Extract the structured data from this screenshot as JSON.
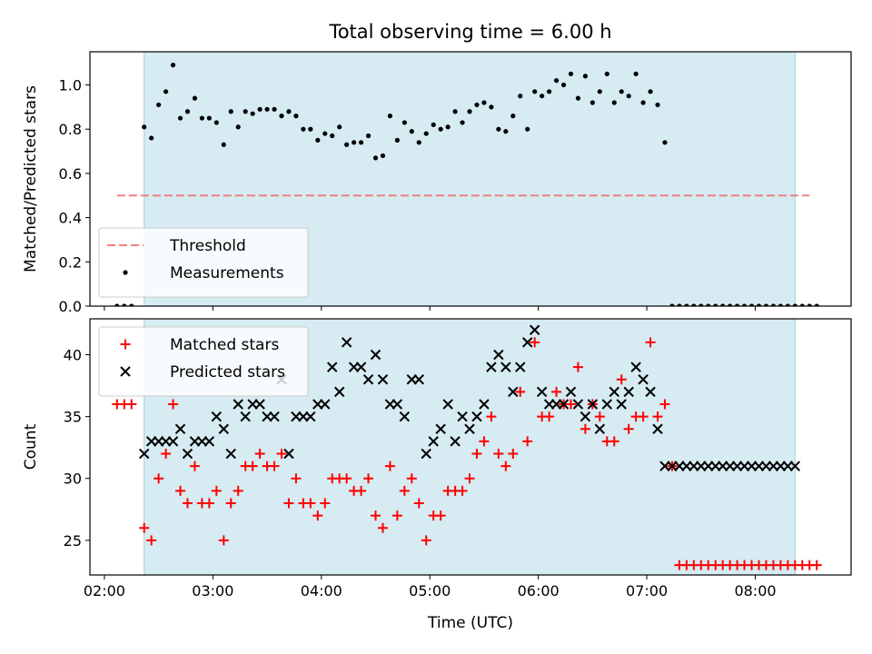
{
  "figure": {
    "title": "Total observing time = 6.00 h"
  },
  "chart_data": [
    {
      "type": "scatter",
      "title": "Total observing time = 6.00 h",
      "xlabel": "",
      "ylabel": "Matched/Predicted stars",
      "xlim": [
        "01:52",
        "08:53"
      ],
      "ylim": [
        0,
        1.15
      ],
      "x_ticks": [
        "02:00",
        "03:00",
        "04:00",
        "05:00",
        "06:00",
        "07:00",
        "08:00"
      ],
      "y_ticks": [
        "0.0",
        "0.2",
        "0.4",
        "0.6",
        "0.8",
        "1.0"
      ],
      "grid": false,
      "legend": "lower left",
      "shaded_interval": [
        "02:22",
        "08:22"
      ],
      "threshold": {
        "name": "Threshold",
        "y": 0.5,
        "x_range": [
          "02:07",
          "08:30"
        ],
        "color": "#f08080"
      },
      "series": [
        {
          "name": "Measurements",
          "color": "#000000",
          "x": [
            "02:07",
            "02:11",
            "02:15",
            "02:22",
            "02:26",
            "02:30",
            "02:34",
            "02:38",
            "02:42",
            "02:46",
            "02:50",
            "02:54",
            "02:58",
            "03:02",
            "03:06",
            "03:10",
            "03:14",
            "03:18",
            "03:22",
            "03:26",
            "03:30",
            "03:34",
            "03:38",
            "03:42",
            "03:46",
            "03:50",
            "03:54",
            "03:58",
            "04:02",
            "04:06",
            "04:10",
            "04:14",
            "04:18",
            "04:22",
            "04:26",
            "04:30",
            "04:34",
            "04:38",
            "04:42",
            "04:46",
            "04:50",
            "04:54",
            "04:58",
            "05:02",
            "05:06",
            "05:10",
            "05:14",
            "05:18",
            "05:22",
            "05:26",
            "05:30",
            "05:34",
            "05:38",
            "05:42",
            "05:46",
            "05:50",
            "05:54",
            "05:58",
            "06:02",
            "06:06",
            "06:10",
            "06:14",
            "06:18",
            "06:22",
            "06:26",
            "06:30",
            "06:34",
            "06:38",
            "06:42",
            "06:46",
            "06:50",
            "06:54",
            "06:58",
            "07:02",
            "07:06",
            "07:10",
            "07:14",
            "07:18",
            "07:22",
            "07:26",
            "07:30",
            "07:34",
            "07:38",
            "07:42",
            "07:46",
            "07:50",
            "07:54",
            "07:58",
            "08:02",
            "08:06",
            "08:10",
            "08:14",
            "08:18",
            "08:22",
            "08:26",
            "08:30",
            "08:34"
          ],
          "values": [
            0.0,
            0.0,
            0.0,
            0.81,
            0.76,
            0.91,
            0.97,
            1.09,
            0.85,
            0.88,
            0.94,
            0.85,
            0.85,
            0.83,
            0.73,
            0.88,
            0.81,
            0.88,
            0.87,
            0.89,
            0.89,
            0.89,
            0.86,
            0.88,
            0.86,
            0.8,
            0.8,
            0.75,
            0.78,
            0.77,
            0.81,
            0.73,
            0.74,
            0.74,
            0.77,
            0.67,
            0.68,
            0.86,
            0.75,
            0.83,
            0.79,
            0.74,
            0.78,
            0.82,
            0.8,
            0.81,
            0.88,
            0.83,
            0.88,
            0.91,
            0.92,
            0.9,
            0.8,
            0.79,
            0.86,
            0.95,
            0.8,
            0.97,
            0.95,
            0.97,
            1.02,
            1.0,
            1.05,
            0.94,
            1.04,
            0.92,
            0.97,
            1.05,
            0.92,
            0.97,
            0.95,
            1.05,
            0.92,
            0.97,
            0.91,
            0.74,
            0.0,
            0.0,
            0.0,
            0.0,
            0.0,
            0.0,
            0.0,
            0.0,
            0.0,
            0.0,
            0.0,
            0.0,
            0.0,
            0.0,
            0.0,
            0.0,
            0.0,
            0.0,
            0.0,
            0.0,
            0.0
          ]
        }
      ]
    },
    {
      "type": "scatter",
      "title": "",
      "xlabel": "Time (UTC)",
      "ylabel": "Count",
      "xlim": [
        "01:52",
        "08:53"
      ],
      "ylim": [
        22.2,
        42.9
      ],
      "x_ticks": [
        "02:00",
        "03:00",
        "04:00",
        "05:00",
        "06:00",
        "07:00",
        "08:00"
      ],
      "y_ticks": [
        "25",
        "30",
        "35",
        "40"
      ],
      "grid": false,
      "legend": "upper left",
      "shaded_interval": [
        "02:22",
        "08:22"
      ],
      "series": [
        {
          "name": "Matched stars",
          "color": "#ff0000",
          "marker": "+",
          "x": [
            "02:07",
            "02:11",
            "02:15",
            "02:22",
            "02:26",
            "02:30",
            "02:34",
            "02:38",
            "02:42",
            "02:46",
            "02:50",
            "02:54",
            "02:58",
            "03:02",
            "03:06",
            "03:10",
            "03:14",
            "03:18",
            "03:22",
            "03:26",
            "03:30",
            "03:34",
            "03:38",
            "03:42",
            "03:46",
            "03:50",
            "03:54",
            "03:58",
            "04:02",
            "04:06",
            "04:10",
            "04:14",
            "04:18",
            "04:22",
            "04:26",
            "04:30",
            "04:34",
            "04:38",
            "04:42",
            "04:46",
            "04:50",
            "04:54",
            "04:58",
            "05:02",
            "05:06",
            "05:10",
            "05:14",
            "05:18",
            "05:22",
            "05:26",
            "05:30",
            "05:34",
            "05:38",
            "05:42",
            "05:46",
            "05:50",
            "05:54",
            "05:58",
            "06:02",
            "06:06",
            "06:10",
            "06:14",
            "06:18",
            "06:22",
            "06:26",
            "06:30",
            "06:34",
            "06:38",
            "06:42",
            "06:46",
            "06:50",
            "06:54",
            "06:58",
            "07:02",
            "07:06",
            "07:10",
            "07:14",
            "07:18",
            "07:22",
            "07:26",
            "07:30",
            "07:34",
            "07:38",
            "07:42",
            "07:46",
            "07:50",
            "07:54",
            "07:58",
            "08:02",
            "08:06",
            "08:10",
            "08:14",
            "08:18",
            "08:22",
            "08:26",
            "08:30",
            "08:34"
          ],
          "values": [
            36,
            36,
            36,
            26,
            25,
            30,
            32,
            36,
            29,
            28,
            31,
            28,
            28,
            29,
            25,
            28,
            29,
            31,
            31,
            32,
            31,
            31,
            32,
            28,
            30,
            28,
            28,
            27,
            28,
            30,
            30,
            30,
            29,
            29,
            30,
            27,
            26,
            31,
            27,
            29,
            30,
            28,
            25,
            27,
            27,
            29,
            29,
            29,
            30,
            32,
            33,
            35,
            32,
            31,
            32,
            37,
            33,
            41,
            35,
            35,
            37,
            36,
            36,
            39,
            34,
            36,
            35,
            33,
            33,
            38,
            34,
            35,
            35,
            41,
            35,
            36,
            31,
            23,
            23,
            23,
            23,
            23,
            23,
            23,
            23,
            23,
            23,
            23,
            23,
            23,
            23,
            23,
            23,
            23,
            23,
            23,
            23
          ]
        },
        {
          "name": "Predicted stars",
          "color": "#000000",
          "marker": "x",
          "x": [
            "02:22",
            "02:26",
            "02:30",
            "02:34",
            "02:38",
            "02:42",
            "02:46",
            "02:50",
            "02:54",
            "02:58",
            "03:02",
            "03:06",
            "03:10",
            "03:14",
            "03:18",
            "03:22",
            "03:26",
            "03:30",
            "03:34",
            "03:38",
            "03:42",
            "03:46",
            "03:50",
            "03:54",
            "03:58",
            "04:02",
            "04:06",
            "04:10",
            "04:14",
            "04:18",
            "04:22",
            "04:26",
            "04:30",
            "04:34",
            "04:38",
            "04:42",
            "04:46",
            "04:50",
            "04:54",
            "04:58",
            "05:02",
            "05:06",
            "05:10",
            "05:14",
            "05:18",
            "05:22",
            "05:26",
            "05:30",
            "05:34",
            "05:38",
            "05:42",
            "05:46",
            "05:50",
            "05:54",
            "05:58",
            "06:02",
            "06:06",
            "06:10",
            "06:14",
            "06:18",
            "06:22",
            "06:26",
            "06:30",
            "06:34",
            "06:38",
            "06:42",
            "06:46",
            "06:50",
            "06:54",
            "06:58",
            "07:02",
            "07:06",
            "07:10",
            "07:14",
            "07:18",
            "07:22",
            "07:26",
            "07:30",
            "07:34",
            "07:38",
            "07:42",
            "07:46",
            "07:50",
            "07:54",
            "07:58",
            "08:02",
            "08:06",
            "08:10",
            "08:14",
            "08:18",
            "08:22"
          ],
          "values": [
            32,
            33,
            33,
            33,
            33,
            34,
            32,
            33,
            33,
            33,
            35,
            34,
            32,
            36,
            35,
            36,
            36,
            35,
            35,
            38,
            32,
            35,
            35,
            35,
            36,
            36,
            39,
            37,
            41,
            39,
            39,
            38,
            40,
            38,
            36,
            36,
            35,
            38,
            38,
            32,
            33,
            34,
            36,
            33,
            35,
            34,
            35,
            36,
            39,
            40,
            39,
            37,
            39,
            41,
            42,
            37,
            36,
            36,
            36,
            37,
            36,
            35,
            36,
            34,
            36,
            37,
            36,
            37,
            39,
            38,
            37,
            34,
            31,
            31,
            31,
            31,
            31,
            31,
            31,
            31,
            31,
            31,
            31,
            31,
            31,
            31,
            31,
            31,
            31,
            31,
            31
          ]
        }
      ]
    }
  ]
}
